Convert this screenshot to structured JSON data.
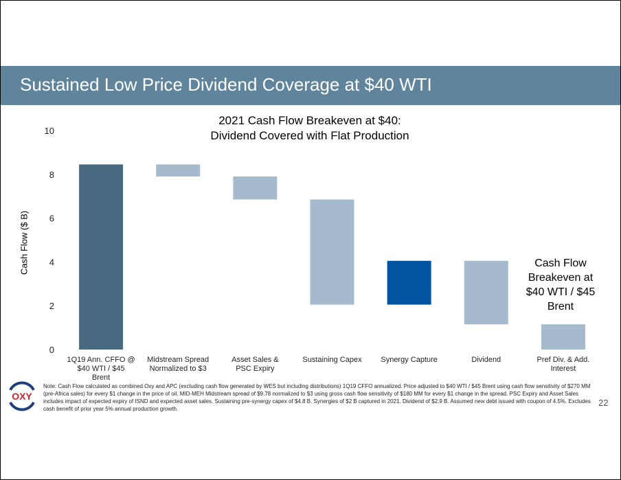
{
  "header": {
    "title": "Sustained Low Price Dividend Coverage at $40 WTI"
  },
  "colors": {
    "header": "#5f849c",
    "start_bar": "#4a6a82",
    "decrease_bar": "#a5bacd",
    "increase_bar": "#0054a0"
  },
  "chart_data": {
    "type": "waterfall",
    "title": "2021 Cash Flow Breakeven at $40:",
    "subtitle": "Dividend Covered with Flat Production",
    "ylabel": "Cash Flow ($ B)",
    "ylim": [
      0,
      10
    ],
    "yticks": [
      0,
      2,
      4,
      6,
      8,
      10
    ],
    "grid": false,
    "categories": [
      "1Q19 Ann. CFFO @ $40 WTI / $45 Brent",
      "Midstream Spread Normalized to $3",
      "Asset Sales & PSC Expiry",
      "Sustaining Capex",
      "Synergy Capture",
      "Dividend",
      "Pref Div. & Add. Interest"
    ],
    "bars": [
      {
        "low": 0,
        "high": 8.45,
        "kind": "start"
      },
      {
        "low": 7.9,
        "high": 8.45,
        "kind": "decrease"
      },
      {
        "low": 6.85,
        "high": 7.9,
        "kind": "decrease"
      },
      {
        "low": 2.05,
        "high": 6.85,
        "kind": "decrease"
      },
      {
        "low": 2.05,
        "high": 4.05,
        "kind": "increase"
      },
      {
        "low": 1.15,
        "high": 4.05,
        "kind": "decrease"
      },
      {
        "low": 0,
        "high": 1.15,
        "kind": "decrease"
      }
    ],
    "annotation": "Cash Flow Breakeven at $40 WTI / $45 Brent"
  },
  "footer": {
    "note": "Note: Cash Flow calculated as combined Oxy and APC (excluding cash flow generated by WES but including distributions) 1Q19 CFFO annualized. Price adjusted to $40 WTI / $45 Brent using cash flow sensitivity of $270 MM (pre-Africa sales) for every $1 change in the price of oil. MID-MEH Midstream spread of $9.78 normalized to $3 using gross cash flow sensitivity of $180 MM for every $1 change in the spread.  PSC Expiry and Asset Sales includes impact of expected expiry of ISND and expected asset sales. Sustaining pre-synergy capex of $4.8 B. Synergies of $2 B captured in 2021. Dividend of $2.9 B. Assumed new debt issued with coupon of 4.5%. Excludes cash benefit of prior year 5% annual production growth.",
    "page_number": "22",
    "logo_text": "OXY"
  }
}
